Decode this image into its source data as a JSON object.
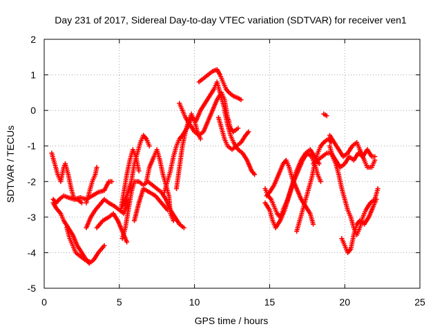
{
  "chart_data": {
    "type": "scatter",
    "title": "Day 231 of 2017, Sidereal Day-to-day VTEC variation (SDTVAR) for receiver ven1",
    "xlabel": "GPS time / hours",
    "ylabel": "SDTVAR / TECUs",
    "xlim": [
      0,
      25
    ],
    "ylim": [
      -5,
      2
    ],
    "xticks": [
      0,
      5,
      10,
      15,
      20,
      25
    ],
    "yticks": [
      -5,
      -4,
      -3,
      -2,
      -1,
      0,
      1,
      2
    ],
    "xtick_labels": [
      "0",
      "5",
      "10",
      "15",
      "20",
      "25"
    ],
    "ytick_labels": [
      "-5",
      "-4",
      "-3",
      "-2",
      "-1",
      "0",
      "1",
      "2"
    ],
    "grid": true,
    "marker": "+",
    "color": "#ff0000",
    "series": [
      {
        "points": [
          [
            0.5,
            -1.2
          ],
          [
            0.7,
            -1.5
          ],
          [
            0.9,
            -1.8
          ],
          [
            1.1,
            -2.0
          ],
          [
            1.3,
            -1.6
          ],
          [
            1.4,
            -1.5
          ]
        ]
      },
      {
        "points": [
          [
            0.6,
            -2.5
          ],
          [
            0.8,
            -2.6
          ],
          [
            1.0,
            -2.5
          ],
          [
            1.3,
            -2.4
          ],
          [
            1.6,
            -2.45
          ],
          [
            2.0,
            -2.5
          ],
          [
            2.4,
            -2.45
          ],
          [
            2.8,
            -2.5
          ],
          [
            3.2,
            -2.4
          ],
          [
            3.6,
            -2.3
          ],
          [
            4.0,
            -2.25
          ],
          [
            4.3,
            -2.0
          ],
          [
            4.5,
            -2.0
          ]
        ]
      },
      {
        "points": [
          [
            0.6,
            -2.6
          ],
          [
            0.8,
            -2.75
          ],
          [
            1.1,
            -2.9
          ],
          [
            1.3,
            -3.1
          ],
          [
            1.6,
            -3.3
          ],
          [
            1.9,
            -3.5
          ],
          [
            2.2,
            -3.8
          ],
          [
            2.5,
            -4.0
          ],
          [
            2.8,
            -4.2
          ],
          [
            3.0,
            -4.3
          ],
          [
            3.3,
            -4.2
          ],
          [
            3.6,
            -4.0
          ],
          [
            4.0,
            -3.8
          ]
        ]
      },
      {
        "points": [
          [
            1.5,
            -3.3
          ],
          [
            1.7,
            -3.6
          ],
          [
            1.9,
            -3.8
          ],
          [
            2.1,
            -4.0
          ],
          [
            2.4,
            -4.1
          ],
          [
            2.7,
            -4.2
          ],
          [
            3.0,
            -4.25
          ]
        ]
      },
      {
        "points": [
          [
            1.4,
            -1.5
          ],
          [
            1.6,
            -1.8
          ],
          [
            1.8,
            -2.2
          ],
          [
            2.0,
            -2.5
          ],
          [
            2.2,
            -2.5
          ],
          [
            2.5,
            -2.6
          ]
        ]
      },
      {
        "points": [
          [
            2.8,
            -2.6
          ],
          [
            3.0,
            -2.3
          ],
          [
            3.2,
            -2.0
          ],
          [
            3.4,
            -1.8
          ],
          [
            3.5,
            -1.6
          ]
        ]
      },
      {
        "points": [
          [
            2.8,
            -3.3
          ],
          [
            3.1,
            -3.0
          ],
          [
            3.4,
            -2.8
          ],
          [
            3.8,
            -2.6
          ],
          [
            4.0,
            -2.5
          ],
          [
            4.3,
            -2.6
          ],
          [
            4.7,
            -2.7
          ],
          [
            5.0,
            -2.8
          ],
          [
            5.3,
            -2.9
          ],
          [
            5.6,
            -2.5
          ]
        ]
      },
      {
        "points": [
          [
            3.5,
            -3.3
          ],
          [
            3.9,
            -3.1
          ],
          [
            4.3,
            -3.0
          ],
          [
            4.6,
            -2.9
          ],
          [
            4.9,
            -3.1
          ],
          [
            5.2,
            -3.4
          ],
          [
            5.5,
            -3.7
          ]
        ]
      },
      {
        "points": [
          [
            5.2,
            -3.6
          ],
          [
            5.4,
            -3.3
          ],
          [
            5.6,
            -2.8
          ],
          [
            5.8,
            -2.3
          ],
          [
            6.0,
            -2.0
          ],
          [
            6.3,
            -2.0
          ],
          [
            6.6,
            -2.1
          ],
          [
            6.9,
            -2.0
          ],
          [
            7.2,
            -2.1
          ],
          [
            7.5,
            -2.2
          ],
          [
            7.8,
            -2.3
          ],
          [
            8.1,
            -2.5
          ],
          [
            8.4,
            -2.8
          ],
          [
            8.7,
            -3.0
          ],
          [
            9.0,
            -3.2
          ],
          [
            9.3,
            -3.3
          ]
        ]
      },
      {
        "points": [
          [
            5.2,
            -2.7
          ],
          [
            5.5,
            -2.4
          ],
          [
            5.8,
            -2.0
          ],
          [
            6.0,
            -1.5
          ],
          [
            6.2,
            -1.2
          ],
          [
            6.4,
            -0.9
          ],
          [
            6.6,
            -0.7
          ],
          [
            6.8,
            -0.8
          ],
          [
            7.0,
            -1.0
          ]
        ]
      },
      {
        "points": [
          [
            5.1,
            -2.8
          ],
          [
            5.3,
            -2.3
          ],
          [
            5.5,
            -1.8
          ],
          [
            5.7,
            -1.4
          ],
          [
            5.9,
            -1.1
          ],
          [
            6.1,
            -1.3
          ],
          [
            6.3,
            -1.7
          ]
        ]
      },
      {
        "points": [
          [
            6.0,
            -3.1
          ],
          [
            6.3,
            -2.6
          ],
          [
            6.6,
            -2.2
          ],
          [
            7.0,
            -2.3
          ],
          [
            7.4,
            -2.4
          ],
          [
            7.8,
            -2.6
          ],
          [
            8.2,
            -2.8
          ]
        ]
      },
      {
        "points": [
          [
            6.8,
            -2.0
          ],
          [
            7.0,
            -1.6
          ],
          [
            7.3,
            -1.3
          ],
          [
            7.5,
            -1.1
          ],
          [
            7.7,
            -1.4
          ],
          [
            7.9,
            -1.8
          ],
          [
            8.1,
            -2.1
          ],
          [
            8.3,
            -2.4
          ],
          [
            8.4,
            -2.9
          ],
          [
            8.6,
            -3.1
          ]
        ]
      },
      {
        "points": [
          [
            8.0,
            -2.3
          ],
          [
            8.2,
            -2.0
          ],
          [
            8.4,
            -1.7
          ],
          [
            8.6,
            -1.3
          ],
          [
            8.8,
            -1.0
          ],
          [
            9.0,
            -0.8
          ],
          [
            9.2,
            -0.7
          ],
          [
            9.5,
            -0.5
          ],
          [
            9.8,
            -0.2
          ],
          [
            10.1,
            -0.3
          ],
          [
            10.4,
            0.0
          ],
          [
            10.7,
            0.2
          ],
          [
            11.0,
            0.4
          ],
          [
            11.3,
            0.6
          ],
          [
            11.5,
            0.8
          ],
          [
            11.7,
            0.5
          ],
          [
            11.9,
            0.2
          ],
          [
            12.1,
            -0.1
          ],
          [
            12.3,
            -0.3
          ]
        ]
      },
      {
        "points": [
          [
            8.8,
            -2.2
          ],
          [
            9.0,
            -1.6
          ],
          [
            9.2,
            -1.0
          ],
          [
            9.4,
            -0.6
          ],
          [
            9.6,
            -0.3
          ],
          [
            9.8,
            -0.1
          ],
          [
            10.0,
            -0.3
          ],
          [
            10.2,
            -0.6
          ],
          [
            10.4,
            -0.8
          ]
        ]
      },
      {
        "points": [
          [
            9.0,
            0.2
          ],
          [
            9.2,
            0.0
          ],
          [
            9.4,
            -0.2
          ],
          [
            9.7,
            -0.4
          ],
          [
            10.0,
            -0.6
          ],
          [
            10.3,
            -0.7
          ],
          [
            10.6,
            -0.6
          ],
          [
            10.9,
            -0.3
          ],
          [
            11.2,
            0.0
          ],
          [
            11.5,
            0.3
          ],
          [
            11.8,
            0.5
          ],
          [
            12.0,
            0.3
          ],
          [
            12.2,
            -0.2
          ],
          [
            12.4,
            -0.5
          ],
          [
            12.6,
            -0.6
          ],
          [
            12.9,
            -0.5
          ]
        ]
      },
      {
        "points": [
          [
            10.3,
            0.8
          ],
          [
            10.6,
            0.9
          ],
          [
            10.9,
            1.0
          ],
          [
            11.2,
            1.1
          ],
          [
            11.5,
            1.15
          ],
          [
            11.7,
            1.0
          ],
          [
            11.9,
            0.8
          ],
          [
            12.1,
            0.6
          ],
          [
            12.3,
            0.5
          ],
          [
            12.6,
            0.4
          ],
          [
            12.9,
            0.35
          ],
          [
            13.1,
            0.3
          ]
        ]
      },
      {
        "points": [
          [
            11.6,
            -0.2
          ],
          [
            11.8,
            -0.5
          ],
          [
            12.0,
            -0.8
          ],
          [
            12.2,
            -1.0
          ],
          [
            12.5,
            -1.1
          ],
          [
            12.8,
            -1.0
          ],
          [
            13.1,
            -0.9
          ],
          [
            13.4,
            -0.7
          ],
          [
            13.6,
            -0.6
          ]
        ]
      },
      {
        "points": [
          [
            12.0,
            0.0
          ],
          [
            12.2,
            -0.4
          ],
          [
            12.4,
            -0.7
          ],
          [
            12.6,
            -0.9
          ],
          [
            12.9,
            -1.1
          ],
          [
            13.2,
            -1.2
          ],
          [
            13.5,
            -1.4
          ],
          [
            13.8,
            -1.7
          ],
          [
            14.0,
            -1.8
          ]
        ]
      },
      {
        "points": [
          [
            14.7,
            -2.2
          ],
          [
            14.9,
            -2.4
          ],
          [
            15.1,
            -2.5
          ],
          [
            15.3,
            -2.7
          ],
          [
            15.5,
            -2.9
          ],
          [
            15.7,
            -3.0
          ],
          [
            15.9,
            -2.8
          ],
          [
            16.2,
            -2.5
          ],
          [
            16.5,
            -2.1
          ],
          [
            16.8,
            -1.7
          ],
          [
            17.1,
            -1.4
          ],
          [
            17.4,
            -1.2
          ],
          [
            17.7,
            -1.1
          ],
          [
            18.0,
            -1.3
          ],
          [
            18.3,
            -1.5
          ]
        ]
      },
      {
        "points": [
          [
            14.8,
            -2.4
          ],
          [
            15.0,
            -2.3
          ],
          [
            15.3,
            -2.1
          ],
          [
            15.6,
            -1.8
          ],
          [
            15.9,
            -1.5
          ],
          [
            16.1,
            -1.4
          ],
          [
            16.3,
            -1.6
          ],
          [
            16.5,
            -1.9
          ],
          [
            16.8,
            -2.2
          ],
          [
            17.1,
            -2.5
          ],
          [
            17.4,
            -2.7
          ],
          [
            17.7,
            -2.9
          ],
          [
            17.9,
            -3.2
          ]
        ]
      },
      {
        "points": [
          [
            14.7,
            -2.6
          ],
          [
            15.0,
            -2.8
          ],
          [
            15.2,
            -3.1
          ],
          [
            15.4,
            -3.3
          ],
          [
            15.7,
            -3.1
          ],
          [
            16.0,
            -2.8
          ],
          [
            16.3,
            -2.4
          ],
          [
            16.6,
            -2.0
          ],
          [
            16.9,
            -1.7
          ],
          [
            17.2,
            -1.4
          ],
          [
            17.5,
            -1.2
          ],
          [
            17.8,
            -1.3
          ],
          [
            18.0,
            -1.5
          ],
          [
            18.2,
            -1.8
          ],
          [
            18.4,
            -2.0
          ]
        ]
      },
      {
        "points": [
          [
            16.8,
            -3.4
          ],
          [
            17.0,
            -3.1
          ],
          [
            17.2,
            -2.8
          ],
          [
            17.4,
            -2.5
          ],
          [
            17.6,
            -2.2
          ],
          [
            17.8,
            -1.9
          ],
          [
            18.0,
            -1.5
          ],
          [
            18.2,
            -1.2
          ],
          [
            18.4,
            -1.0
          ],
          [
            18.6,
            -0.9
          ],
          [
            18.9,
            -0.8
          ],
          [
            19.1,
            -0.9
          ]
        ]
      },
      {
        "points": [
          [
            17.9,
            -1.5
          ],
          [
            18.2,
            -1.4
          ],
          [
            18.5,
            -1.3
          ],
          [
            18.8,
            -1.2
          ],
          [
            19.1,
            -1.2
          ],
          [
            19.4,
            -1.4
          ],
          [
            19.7,
            -1.6
          ],
          [
            20.0,
            -1.5
          ],
          [
            20.3,
            -1.3
          ],
          [
            20.6,
            -1.4
          ],
          [
            20.9,
            -1.2
          ],
          [
            21.2,
            -1.3
          ],
          [
            21.5,
            -1.1
          ],
          [
            21.8,
            -1.3
          ],
          [
            22.0,
            -1.3
          ]
        ]
      },
      {
        "points": [
          [
            18.6,
            -0.1
          ],
          [
            18.8,
            -0.15
          ]
        ]
      },
      {
        "points": [
          [
            19.0,
            -1.0
          ],
          [
            19.2,
            -1.3
          ],
          [
            19.4,
            -1.5
          ],
          [
            19.6,
            -1.8
          ],
          [
            19.8,
            -2.2
          ],
          [
            20.0,
            -2.5
          ],
          [
            20.2,
            -2.8
          ],
          [
            20.4,
            -3.0
          ],
          [
            20.6,
            -3.3
          ],
          [
            20.8,
            -3.5
          ],
          [
            21.0,
            -3.3
          ],
          [
            21.2,
            -3.0
          ],
          [
            21.4,
            -2.8
          ],
          [
            21.7,
            -2.6
          ],
          [
            22.0,
            -2.5
          ],
          [
            22.2,
            -2.2
          ]
        ]
      },
      {
        "points": [
          [
            19.0,
            -0.7
          ],
          [
            19.3,
            -0.9
          ],
          [
            19.6,
            -1.1
          ],
          [
            19.9,
            -1.3
          ],
          [
            20.2,
            -1.2
          ],
          [
            20.5,
            -1.0
          ],
          [
            20.8,
            -0.9
          ],
          [
            21.0,
            -1.1
          ],
          [
            21.3,
            -1.4
          ],
          [
            21.5,
            -1.6
          ],
          [
            21.8,
            -1.6
          ],
          [
            22.0,
            -1.4
          ]
        ]
      },
      {
        "points": [
          [
            19.8,
            -3.6
          ],
          [
            20.0,
            -3.8
          ],
          [
            20.2,
            -4.0
          ],
          [
            20.4,
            -3.9
          ],
          [
            20.6,
            -3.5
          ],
          [
            20.8,
            -3.2
          ],
          [
            21.0,
            -3.1
          ],
          [
            21.3,
            -3.2
          ],
          [
            21.6,
            -3.0
          ],
          [
            21.9,
            -2.7
          ],
          [
            22.1,
            -2.5
          ]
        ]
      }
    ]
  }
}
